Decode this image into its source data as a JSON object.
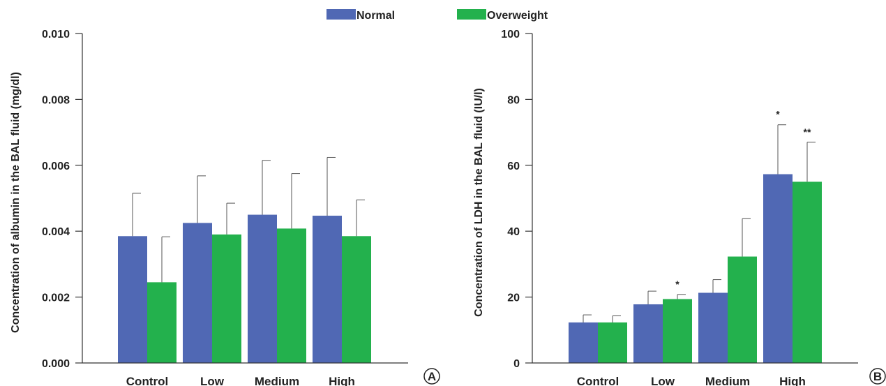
{
  "legend": [
    {
      "name": "Normal",
      "color": "#5068b4"
    },
    {
      "name": "Overweight",
      "color": "#23b14d"
    }
  ],
  "chart_data": [
    {
      "type": "bar",
      "panel_label": "A",
      "ylabel": "Concentration of albumin in the BAL fluid (mg/dl)",
      "xlabel": "",
      "categories": [
        "Control",
        "Low",
        "Medium",
        "High"
      ],
      "ylim": [
        0,
        0.01
      ],
      "yticks": [
        "0.000",
        "0.002",
        "0.004",
        "0.006",
        "0.008",
        "0.010"
      ],
      "series": [
        {
          "name": "Normal",
          "values": [
            0.00385,
            0.00425,
            0.0045,
            0.00447
          ],
          "errors": [
            0.0013,
            0.00143,
            0.00165,
            0.00177
          ]
        },
        {
          "name": "Overweight",
          "values": [
            0.00245,
            0.0039,
            0.00408,
            0.00385
          ],
          "errors": [
            0.00138,
            0.00095,
            0.00167,
            0.0011
          ]
        }
      ],
      "annotations": [],
      "grid": false
    },
    {
      "type": "bar",
      "panel_label": "B",
      "ylabel": "Concentration of LDH in the BAL fluid (IU/l)",
      "xlabel": "",
      "categories": [
        "Control",
        "Low",
        "Medium",
        "High"
      ],
      "ylim": [
        0,
        100
      ],
      "yticks": [
        "0",
        "20",
        "40",
        "60",
        "80",
        "100"
      ],
      "series": [
        {
          "name": "Normal",
          "values": [
            12.3,
            17.8,
            21.3,
            57.3
          ],
          "errors": [
            2.3,
            4.0,
            4.0,
            15.0
          ]
        },
        {
          "name": "Overweight",
          "values": [
            12.3,
            19.4,
            32.3,
            55.0
          ],
          "errors": [
            2.0,
            1.4,
            11.5,
            12.0
          ]
        }
      ],
      "annotations": [
        {
          "series": 1,
          "index": 1,
          "text": "*"
        },
        {
          "series": 0,
          "index": 3,
          "text": "*"
        },
        {
          "series": 1,
          "index": 3,
          "text": "**"
        }
      ],
      "grid": false
    }
  ]
}
